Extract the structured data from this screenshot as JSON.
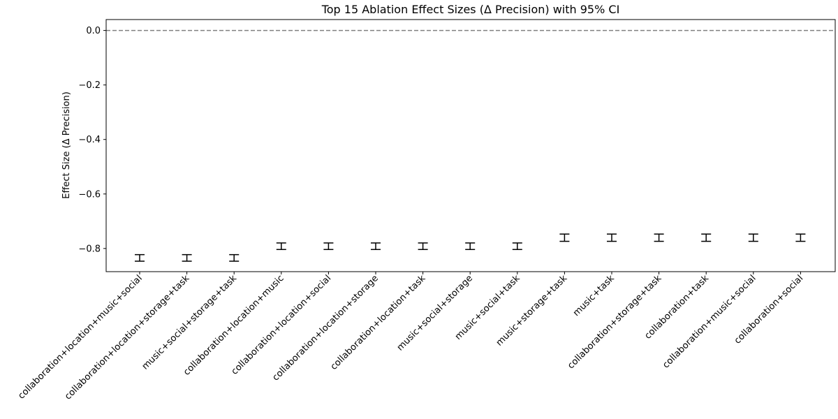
{
  "chart_data": {
    "type": "errorbar",
    "title": "Top 15 Ablation Effect Sizes (Δ Precision) with 95% CI",
    "xlabel": "",
    "ylabel": "Effect Size (Δ Precision)",
    "ylim": [
      -0.885,
      0.04
    ],
    "yticks": [
      "0.0",
      "−0.2",
      "−0.4",
      "−0.6",
      "−0.8"
    ],
    "ytick_values": [
      0.0,
      -0.2,
      -0.4,
      -0.6,
      -0.8
    ],
    "reference_line": {
      "y": 0.0,
      "style": "dashed",
      "color": "#808080"
    },
    "grid": false,
    "categories": [
      "collaboration+location+music+social",
      "collaboration+location+storage+task",
      "music+social+storage+task",
      "collaboration+location+music",
      "collaboration+location+social",
      "collaboration+location+storage",
      "collaboration+location+task",
      "music+social+storage",
      "music+social+task",
      "music+storage+task",
      "music+task",
      "collaboration+storage+task",
      "collaboration+task",
      "collaboration+music+social",
      "collaboration+social"
    ],
    "values": [
      -0.8346,
      -0.8346,
      -0.8346,
      -0.7917,
      -0.7917,
      -0.7917,
      -0.7917,
      -0.7917,
      -0.7917,
      -0.7604,
      -0.7604,
      -0.7604,
      -0.7604,
      -0.7604,
      -0.7604
    ],
    "ci_low": [
      -0.8466,
      -0.8466,
      -0.8466,
      -0.8037,
      -0.8037,
      -0.8037,
      -0.8037,
      -0.8037,
      -0.8037,
      -0.7737,
      -0.7737,
      -0.7737,
      -0.7737,
      -0.7737,
      -0.7737
    ],
    "ci_high": [
      -0.8226,
      -0.8226,
      -0.8226,
      -0.7797,
      -0.7797,
      -0.7797,
      -0.7797,
      -0.7797,
      -0.7797,
      -0.7471,
      -0.7471,
      -0.7471,
      -0.7471,
      -0.7471,
      -0.7471
    ],
    "marker_color": "#000000"
  }
}
